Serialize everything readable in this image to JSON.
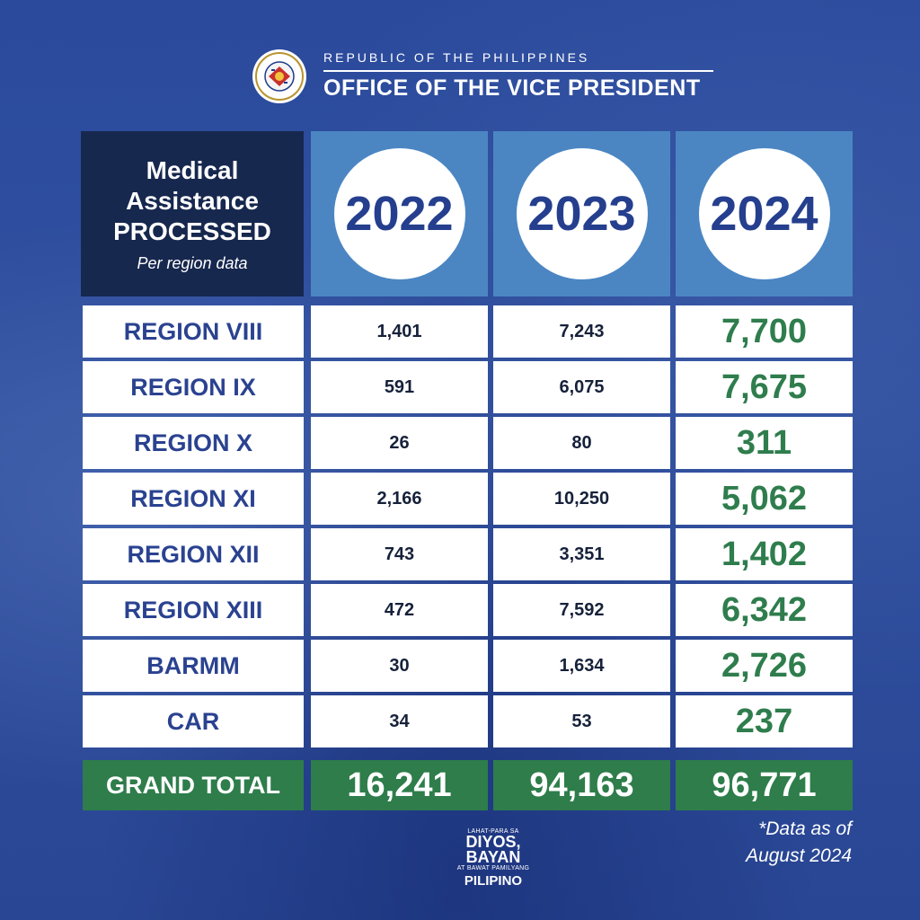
{
  "header": {
    "republic": "REPUBLIC OF THE PHILIPPINES",
    "office": "OFFICE OF THE VICE PRESIDENT",
    "seal_icon": "ovp-seal-icon"
  },
  "title": {
    "line1": "Medical",
    "line2": "Assistance",
    "line3": "PROCESSED",
    "subtitle": "Per region data"
  },
  "colors": {
    "background": "#2d4c9f",
    "title_box": "#17284f",
    "year_box": "#4b86c3",
    "year_text": "#253f8e",
    "region_text": "#2a4290",
    "value_2024": "#2f7d4d",
    "grand_total": "#2e7d4b"
  },
  "chart_data": {
    "type": "table",
    "columns": [
      "2022",
      "2023",
      "2024"
    ],
    "rows": [
      {
        "region": "REGION VIII",
        "values": [
          "1,401",
          "7,243",
          "7,700"
        ]
      },
      {
        "region": "REGION IX",
        "values": [
          "591",
          "6,075",
          "7,675"
        ]
      },
      {
        "region": "REGION X",
        "values": [
          "26",
          "80",
          "311"
        ]
      },
      {
        "region": "REGION XI",
        "values": [
          "2,166",
          "10,250",
          "5,062"
        ]
      },
      {
        "region": "REGION XII",
        "values": [
          "743",
          "3,351",
          "1,402"
        ]
      },
      {
        "region": "REGION XIII",
        "values": [
          "472",
          "7,592",
          "6,342"
        ]
      },
      {
        "region": "BARMM",
        "values": [
          "30",
          "1,634",
          "2,726"
        ]
      },
      {
        "region": "CAR",
        "values": [
          "34",
          "53",
          "237"
        ]
      }
    ],
    "total": {
      "label": "GRAND TOTAL",
      "values": [
        "16,241",
        "94,163",
        "96,771"
      ]
    }
  },
  "note": {
    "line1": "*Data as of",
    "line2": "August 2024"
  },
  "footer_logo": {
    "line1": "LAHAT-PARA SA",
    "line2": "DIYOS,",
    "line3": "BAYAN",
    "line4": "AT BAWAT PAMILYANG",
    "line5": "PILIPINO"
  }
}
